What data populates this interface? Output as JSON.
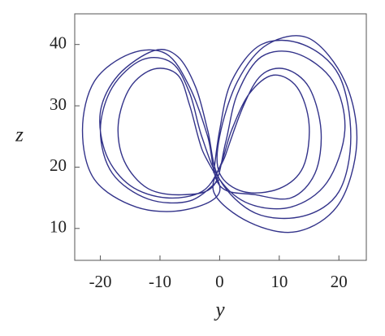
{
  "chart_data": {
    "type": "line",
    "xlabel": "y",
    "ylabel": "z",
    "x": [
      0,
      -5,
      -12,
      -18,
      -20,
      -18,
      -13,
      -8,
      -5,
      -3,
      0,
      5,
      12,
      18,
      21,
      19,
      13,
      7,
      3,
      1,
      -1,
      -6,
      -12,
      -16,
      -17,
      -15,
      -11,
      -7,
      -5,
      -3,
      0,
      -6,
      -14,
      -21,
      -23,
      -21,
      -15,
      -9,
      -5,
      -2,
      0,
      6,
      12,
      16,
      17,
      15,
      11,
      7,
      4,
      1,
      -1,
      5,
      13,
      20,
      23,
      21,
      15,
      8,
      3,
      0,
      0,
      4,
      10,
      14,
      15,
      13,
      9,
      5,
      2,
      0,
      -3,
      -9,
      -15,
      -19,
      -20,
      -17,
      -11,
      -7,
      -4,
      -2,
      0,
      6,
      14,
      20,
      22,
      20,
      14,
      7,
      2,
      0,
      -1
    ],
    "series": [
      {
        "color": "#33338a",
        "values": [
          18,
          14.5,
          14.8,
          19,
          26,
          33,
          37.5,
          37,
          32,
          25,
          18,
          14,
          13.5,
          17.5,
          26,
          34,
          38.5,
          38,
          32,
          24,
          17,
          15.5,
          16.5,
          21,
          27,
          33,
          36,
          35,
          30,
          23,
          16,
          13,
          13.5,
          18,
          26,
          34,
          38.5,
          38.5,
          33,
          25,
          17,
          15.5,
          15,
          19,
          26,
          33,
          36,
          35,
          30,
          22,
          16,
          11,
          9.5,
          14,
          24,
          34,
          41,
          40,
          34,
          25,
          19,
          16,
          16.5,
          20,
          27,
          33,
          35,
          32,
          26,
          20,
          16,
          15,
          17,
          22,
          29,
          35,
          39,
          38,
          33,
          26,
          18,
          12.5,
          12,
          16,
          25,
          35,
          40,
          40,
          34,
          26,
          19
        ]
      }
    ],
    "xlim": [
      -24.3,
      24.6
    ],
    "ylim": [
      4.8,
      45
    ],
    "xticks": [
      -20,
      -10,
      0,
      10,
      20
    ],
    "yticks": [
      10,
      20,
      30,
      40
    ]
  }
}
